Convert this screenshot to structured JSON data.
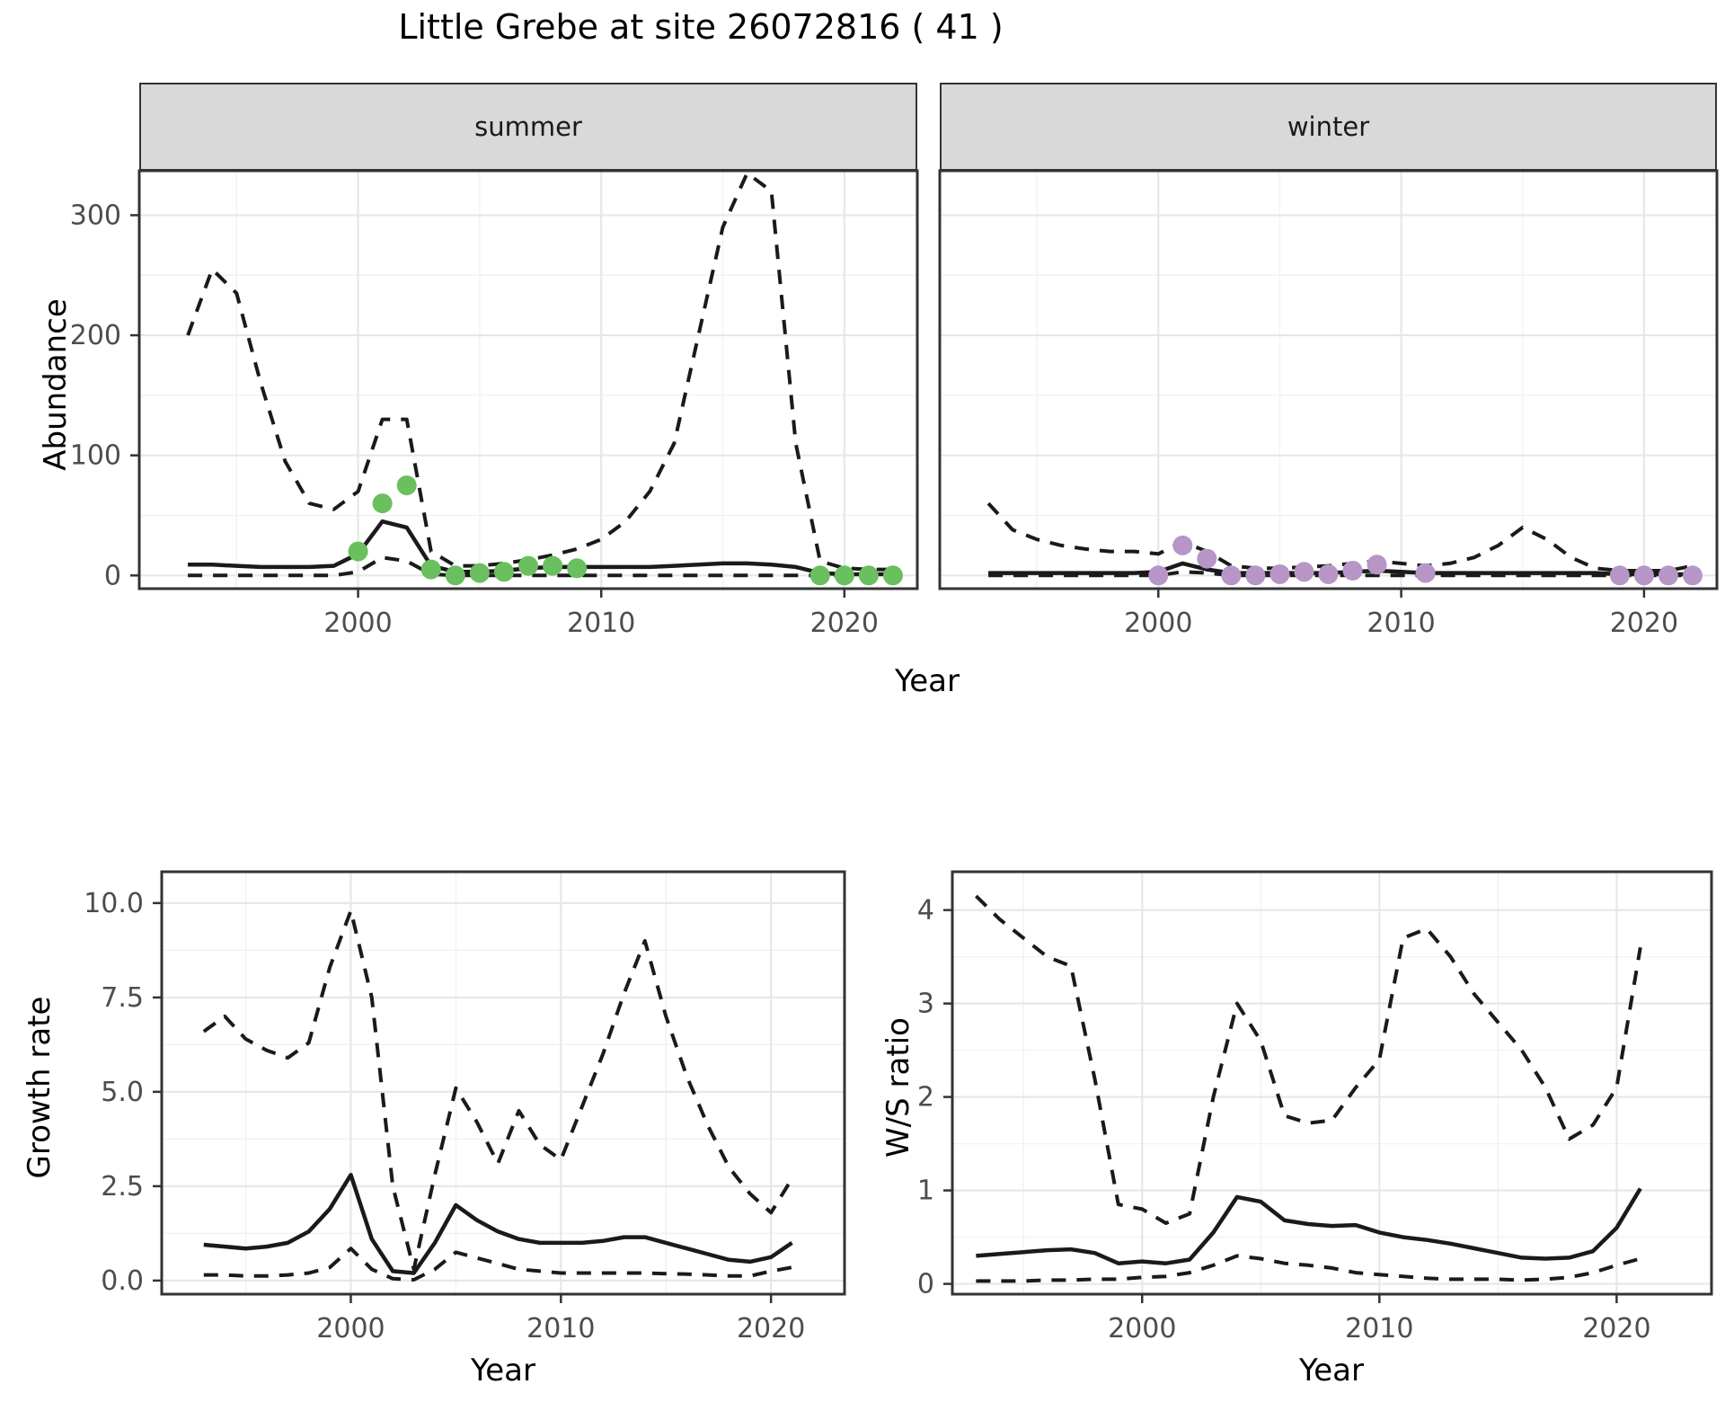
{
  "title": "Little Grebe at site 26072816 ( 41 )",
  "facets": [
    {
      "label": "summer"
    },
    {
      "label": "winter"
    }
  ],
  "axes": {
    "abundance": "Abundance",
    "growth": "Growth rate",
    "ws": "W/S ratio",
    "year": "Year"
  },
  "colors": {
    "summer_points": "#6ABF5E",
    "winter_points": "#B796C7",
    "line": "#1a1a1a",
    "strip_bg": "#d9d9d9",
    "panel_border": "#333333",
    "grid_major": "#e7e7e7",
    "grid_minor": "#f2f2f2",
    "tick_text": "#4d4d4d"
  },
  "chart_data": [
    {
      "id": "abundance-summer",
      "type": "line",
      "title": "summer facet: abundance vs year",
      "xlabel": "Year",
      "ylabel": "Abundance",
      "xlim": [
        1991,
        2023
      ],
      "ylim": [
        -11,
        337
      ],
      "xticks": [
        2000,
        2010,
        2020
      ],
      "xtick_labels": [
        "2000",
        "2010",
        "2020"
      ],
      "yticks": [
        0,
        100,
        200,
        300
      ],
      "ytick_labels": [
        "0",
        "100",
        "200",
        "300"
      ],
      "x_minor": [
        1995,
        2005,
        2015
      ],
      "y_minor": [
        50,
        150,
        250
      ],
      "show_y_axis": true,
      "series": [
        {
          "name": "upper_ci",
          "style": "dashed",
          "x": [
            1993,
            1994,
            1995,
            1996,
            1997,
            1998,
            1999,
            2000,
            2001,
            2002,
            2003,
            2004,
            2005,
            2006,
            2007,
            2008,
            2009,
            2010,
            2011,
            2012,
            2013,
            2014,
            2015,
            2016,
            2017,
            2018,
            2019,
            2020,
            2021,
            2022
          ],
          "y": [
            200,
            255,
            235,
            160,
            95,
            60,
            55,
            70,
            130,
            130,
            20,
            8,
            8,
            10,
            13,
            17,
            22,
            30,
            45,
            70,
            110,
            200,
            290,
            335,
            320,
            110,
            12,
            6,
            5,
            5
          ]
        },
        {
          "name": "lower_ci",
          "style": "dashed",
          "x": [
            1993,
            1994,
            1995,
            1996,
            1997,
            1998,
            1999,
            2000,
            2001,
            2002,
            2003,
            2004,
            2005,
            2006,
            2007,
            2008,
            2009,
            2010,
            2011,
            2012,
            2013,
            2014,
            2015,
            2016,
            2017,
            2018,
            2019,
            2020,
            2021,
            2022
          ],
          "y": [
            0,
            0,
            0,
            0,
            0,
            0,
            0,
            3,
            15,
            12,
            1,
            0,
            0,
            0,
            0,
            0,
            0,
            0,
            0,
            0,
            0,
            0,
            0,
            0,
            0,
            0,
            0,
            0,
            0,
            0
          ]
        },
        {
          "name": "fit",
          "style": "solid",
          "x": [
            1993,
            1994,
            1995,
            1996,
            1997,
            1998,
            1999,
            2000,
            2001,
            2002,
            2003,
            2004,
            2005,
            2006,
            2007,
            2008,
            2009,
            2010,
            2011,
            2012,
            2013,
            2014,
            2015,
            2016,
            2017,
            2018,
            2019,
            2020,
            2021,
            2022
          ],
          "y": [
            9,
            9,
            8,
            7,
            7,
            7,
            8,
            18,
            45,
            40,
            8,
            3,
            3,
            4,
            6,
            7,
            7,
            7,
            7,
            7,
            8,
            9,
            10,
            10,
            9,
            7,
            2,
            1,
            1,
            1
          ]
        },
        {
          "name": "observations",
          "style": "points",
          "color": "#6ABF5E",
          "x": [
            2000,
            2001,
            2002,
            2003,
            2004,
            2005,
            2006,
            2007,
            2008,
            2009,
            2019,
            2020,
            2021,
            2022
          ],
          "y": [
            20,
            60,
            75,
            5,
            0,
            2,
            3,
            8,
            8,
            6,
            0,
            0,
            0,
            0
          ]
        }
      ]
    },
    {
      "id": "abundance-winter",
      "type": "line",
      "title": "winter facet: abundance vs year",
      "xlabel": "Year",
      "ylabel": "Abundance",
      "xlim": [
        1991,
        2023
      ],
      "ylim": [
        -11,
        337
      ],
      "xticks": [
        2000,
        2010,
        2020
      ],
      "xtick_labels": [
        "2000",
        "2010",
        "2020"
      ],
      "yticks": [
        0,
        100,
        200,
        300
      ],
      "ytick_labels": [
        "0",
        "100",
        "200",
        "300"
      ],
      "x_minor": [
        1995,
        2005,
        2015
      ],
      "y_minor": [
        50,
        150,
        250
      ],
      "show_y_axis": false,
      "series": [
        {
          "name": "upper_ci",
          "style": "dashed",
          "x": [
            1993,
            1994,
            1995,
            1996,
            1997,
            1998,
            1999,
            2000,
            2001,
            2002,
            2003,
            2004,
            2005,
            2006,
            2007,
            2008,
            2009,
            2010,
            2011,
            2012,
            2013,
            2014,
            2015,
            2016,
            2017,
            2018,
            2019,
            2020,
            2021,
            2022
          ],
          "y": [
            60,
            38,
            30,
            25,
            22,
            20,
            20,
            18,
            28,
            20,
            8,
            6,
            6,
            7,
            8,
            10,
            12,
            10,
            8,
            10,
            15,
            25,
            40,
            30,
            15,
            6,
            4,
            4,
            4,
            8
          ]
        },
        {
          "name": "lower_ci",
          "style": "dashed",
          "x": [
            1993,
            1994,
            1995,
            1996,
            1997,
            1998,
            1999,
            2000,
            2001,
            2002,
            2003,
            2004,
            2005,
            2006,
            2007,
            2008,
            2009,
            2010,
            2011,
            2012,
            2013,
            2014,
            2015,
            2016,
            2017,
            2018,
            2019,
            2020,
            2021,
            2022
          ],
          "y": [
            0,
            0,
            0,
            0,
            0,
            0,
            0,
            0,
            3,
            2,
            0,
            0,
            0,
            0,
            0,
            0,
            0,
            0,
            0,
            0,
            0,
            0,
            0,
            0,
            0,
            0,
            0,
            0,
            0,
            0
          ]
        },
        {
          "name": "fit",
          "style": "solid",
          "x": [
            1993,
            1994,
            1995,
            1996,
            1997,
            1998,
            1999,
            2000,
            2001,
            2002,
            2003,
            2004,
            2005,
            2006,
            2007,
            2008,
            2009,
            2010,
            2011,
            2012,
            2013,
            2014,
            2015,
            2016,
            2017,
            2018,
            2019,
            2020,
            2021,
            2022
          ],
          "y": [
            2,
            2,
            2,
            2,
            2,
            2,
            2,
            3,
            10,
            5,
            2,
            2,
            2,
            2,
            2,
            3,
            4,
            3,
            2,
            2,
            2,
            2,
            2,
            2,
            2,
            2,
            1,
            1,
            1,
            1
          ]
        },
        {
          "name": "observations",
          "style": "points",
          "color": "#B796C7",
          "x": [
            2000,
            2001,
            2002,
            2003,
            2004,
            2005,
            2006,
            2007,
            2008,
            2009,
            2011,
            2019,
            2020,
            2021,
            2022
          ],
          "y": [
            0,
            25,
            14,
            0,
            0,
            1,
            3,
            1,
            4,
            9,
            2,
            0,
            0,
            0,
            0
          ]
        }
      ]
    },
    {
      "id": "growth-rate",
      "type": "line",
      "title": "growth rate vs year",
      "xlabel": "Year",
      "ylabel": "Growth rate",
      "xlim": [
        1991,
        2023.5
      ],
      "ylim": [
        -0.36,
        10.83
      ],
      "xticks": [
        2000,
        2010,
        2020
      ],
      "xtick_labels": [
        "2000",
        "2010",
        "2020"
      ],
      "yticks": [
        0,
        2.5,
        5,
        7.5,
        10
      ],
      "ytick_labels": [
        "0.0",
        "2.5",
        "5.0",
        "7.5",
        "10.0"
      ],
      "x_minor": [
        1995,
        2005,
        2015
      ],
      "y_minor": [
        1.25,
        3.75,
        6.25,
        8.75
      ],
      "show_y_axis": true,
      "series": [
        {
          "name": "upper_ci",
          "style": "dashed",
          "x": [
            1993,
            1994,
            1995,
            1996,
            1997,
            1998,
            1999,
            2000,
            2001,
            2002,
            2003,
            2004,
            2005,
            2006,
            2007,
            2008,
            2009,
            2010,
            2011,
            2012,
            2013,
            2014,
            2015,
            2016,
            2017,
            2018,
            2019,
            2020,
            2021
          ],
          "y": [
            6.6,
            7.0,
            6.4,
            6.1,
            5.9,
            6.3,
            8.3,
            9.8,
            7.5,
            2.5,
            0.3,
            2.8,
            5.1,
            4.2,
            3.1,
            4.5,
            3.6,
            3.2,
            4.6,
            6.0,
            7.6,
            9.0,
            7.0,
            5.4,
            4.1,
            3.0,
            2.3,
            1.8,
            2.7
          ]
        },
        {
          "name": "lower_ci",
          "style": "dashed",
          "x": [
            1993,
            1994,
            1995,
            1996,
            1997,
            1998,
            1999,
            2000,
            2001,
            2002,
            2003,
            2004,
            2005,
            2006,
            2007,
            2008,
            2009,
            2010,
            2011,
            2012,
            2013,
            2014,
            2015,
            2016,
            2017,
            2018,
            2019,
            2020,
            2021
          ],
          "y": [
            0.15,
            0.15,
            0.12,
            0.12,
            0.15,
            0.2,
            0.35,
            0.85,
            0.3,
            0.05,
            0.02,
            0.3,
            0.75,
            0.6,
            0.45,
            0.3,
            0.25,
            0.2,
            0.2,
            0.2,
            0.2,
            0.2,
            0.18,
            0.17,
            0.15,
            0.12,
            0.12,
            0.25,
            0.35
          ]
        },
        {
          "name": "fit",
          "style": "solid",
          "x": [
            1993,
            1994,
            1995,
            1996,
            1997,
            1998,
            1999,
            2000,
            2001,
            2002,
            2003,
            2004,
            2005,
            2006,
            2007,
            2008,
            2009,
            2010,
            2011,
            2012,
            2013,
            2014,
            2015,
            2016,
            2017,
            2018,
            2019,
            2020,
            2021
          ],
          "y": [
            0.95,
            0.9,
            0.85,
            0.9,
            1.0,
            1.3,
            1.9,
            2.8,
            1.1,
            0.25,
            0.2,
            1.0,
            2.0,
            1.6,
            1.3,
            1.1,
            1.0,
            1.0,
            1.0,
            1.05,
            1.15,
            1.15,
            1.0,
            0.85,
            0.7,
            0.55,
            0.5,
            0.62,
            1.0
          ]
        }
      ]
    },
    {
      "id": "ws-ratio",
      "type": "line",
      "title": "winter/summer ratio vs year",
      "xlabel": "Year",
      "ylabel": "W/S ratio",
      "xlim": [
        1992,
        2024
      ],
      "ylim": [
        -0.11,
        4.41
      ],
      "xticks": [
        2000,
        2010,
        2020
      ],
      "xtick_labels": [
        "2000",
        "2010",
        "2020"
      ],
      "yticks": [
        0,
        1,
        2,
        3,
        4
      ],
      "ytick_labels": [
        "0",
        "1",
        "2",
        "3",
        "4"
      ],
      "x_minor": [
        1995,
        2005,
        2015
      ],
      "y_minor": [
        0.5,
        1.5,
        2.5,
        3.5
      ],
      "show_y_axis": true,
      "series": [
        {
          "name": "upper_ci",
          "style": "dashed",
          "x": [
            1993,
            1994,
            1995,
            1996,
            1997,
            1998,
            1999,
            2000,
            2001,
            2002,
            2003,
            2004,
            2005,
            2006,
            2007,
            2008,
            2009,
            2010,
            2011,
            2012,
            2013,
            2014,
            2015,
            2016,
            2017,
            2018,
            2019,
            2020,
            2021
          ],
          "y": [
            4.15,
            3.9,
            3.7,
            3.5,
            3.4,
            2.2,
            0.85,
            0.8,
            0.65,
            0.75,
            2.0,
            3.0,
            2.6,
            1.8,
            1.72,
            1.75,
            2.1,
            2.4,
            3.7,
            3.8,
            3.5,
            3.1,
            2.8,
            2.5,
            2.1,
            1.55,
            1.7,
            2.1,
            3.6
          ]
        },
        {
          "name": "lower_ci",
          "style": "dashed",
          "x": [
            1993,
            1994,
            1995,
            1996,
            1997,
            1998,
            1999,
            2000,
            2001,
            2002,
            2003,
            2004,
            2005,
            2006,
            2007,
            2008,
            2009,
            2010,
            2011,
            2012,
            2013,
            2014,
            2015,
            2016,
            2017,
            2018,
            2019,
            2020,
            2021
          ],
          "y": [
            0.03,
            0.03,
            0.03,
            0.04,
            0.04,
            0.05,
            0.05,
            0.07,
            0.08,
            0.12,
            0.2,
            0.3,
            0.27,
            0.22,
            0.2,
            0.17,
            0.12,
            0.1,
            0.08,
            0.06,
            0.05,
            0.05,
            0.05,
            0.04,
            0.05,
            0.07,
            0.12,
            0.2,
            0.27
          ]
        },
        {
          "name": "fit",
          "style": "solid",
          "x": [
            1993,
            1994,
            1995,
            1996,
            1997,
            1998,
            1999,
            2000,
            2001,
            2002,
            2003,
            2004,
            2005,
            2006,
            2007,
            2008,
            2009,
            2010,
            2011,
            2012,
            2013,
            2014,
            2015,
            2016,
            2017,
            2018,
            2019,
            2020,
            2021
          ],
          "y": [
            0.3,
            0.32,
            0.34,
            0.36,
            0.37,
            0.33,
            0.22,
            0.24,
            0.22,
            0.26,
            0.55,
            0.93,
            0.88,
            0.68,
            0.64,
            0.62,
            0.63,
            0.55,
            0.5,
            0.47,
            0.43,
            0.38,
            0.33,
            0.28,
            0.27,
            0.28,
            0.35,
            0.6,
            1.02
          ]
        }
      ]
    }
  ]
}
